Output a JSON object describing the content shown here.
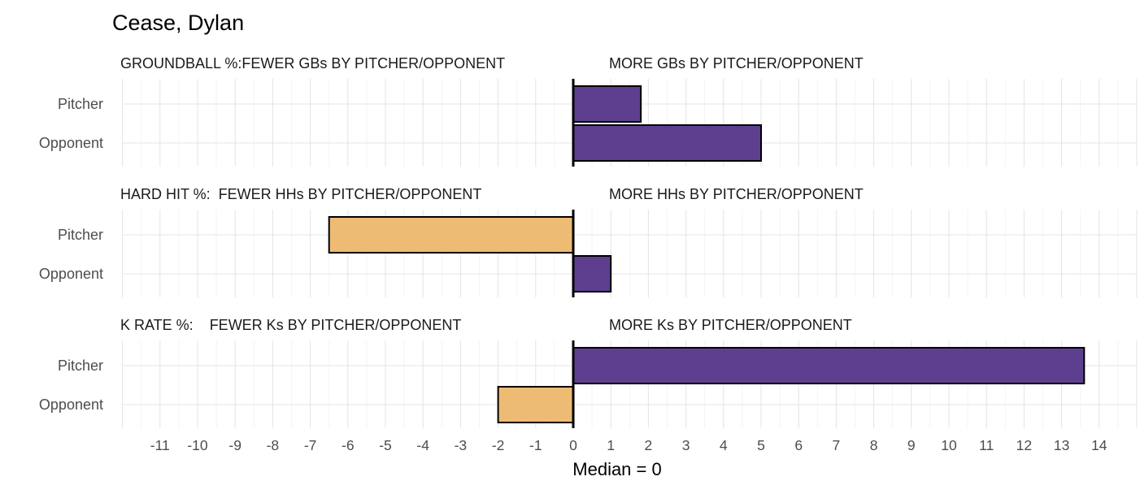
{
  "chart_data": {
    "type": "bar",
    "orientation": "horizontal",
    "title": "Cease, Dylan",
    "xlabel": "Median = 0",
    "ylabel": "",
    "xlim": [
      -12,
      15
    ],
    "x_ticks": [
      -11,
      -10,
      -9,
      -8,
      -7,
      -6,
      -5,
      -4,
      -3,
      -2,
      -1,
      0,
      1,
      2,
      3,
      4,
      5,
      6,
      7,
      8,
      9,
      10,
      11,
      12,
      13,
      14
    ],
    "categories": [
      "Pitcher",
      "Opponent"
    ],
    "grid": true,
    "colors": {
      "positive": "#5e3f8f",
      "negative": "#eebb74",
      "median_line": "#000000"
    },
    "panels": [
      {
        "left_label": "GROUNDBALL %:FEWER GBs BY PITCHER/OPPONENT",
        "right_label": "MORE GBs BY PITCHER/OPPONENT",
        "values": [
          1.8,
          5.0
        ]
      },
      {
        "left_label": "HARD HIT %:  FEWER HHs BY PITCHER/OPPONENT",
        "right_label": "MORE HHs BY PITCHER/OPPONENT",
        "values": [
          -6.5,
          1.0
        ]
      },
      {
        "left_label": "K RATE %:    FEWER Ks BY PITCHER/OPPONENT",
        "right_label": "MORE Ks BY PITCHER/OPPONENT",
        "values": [
          13.6,
          -2.0
        ]
      }
    ]
  }
}
